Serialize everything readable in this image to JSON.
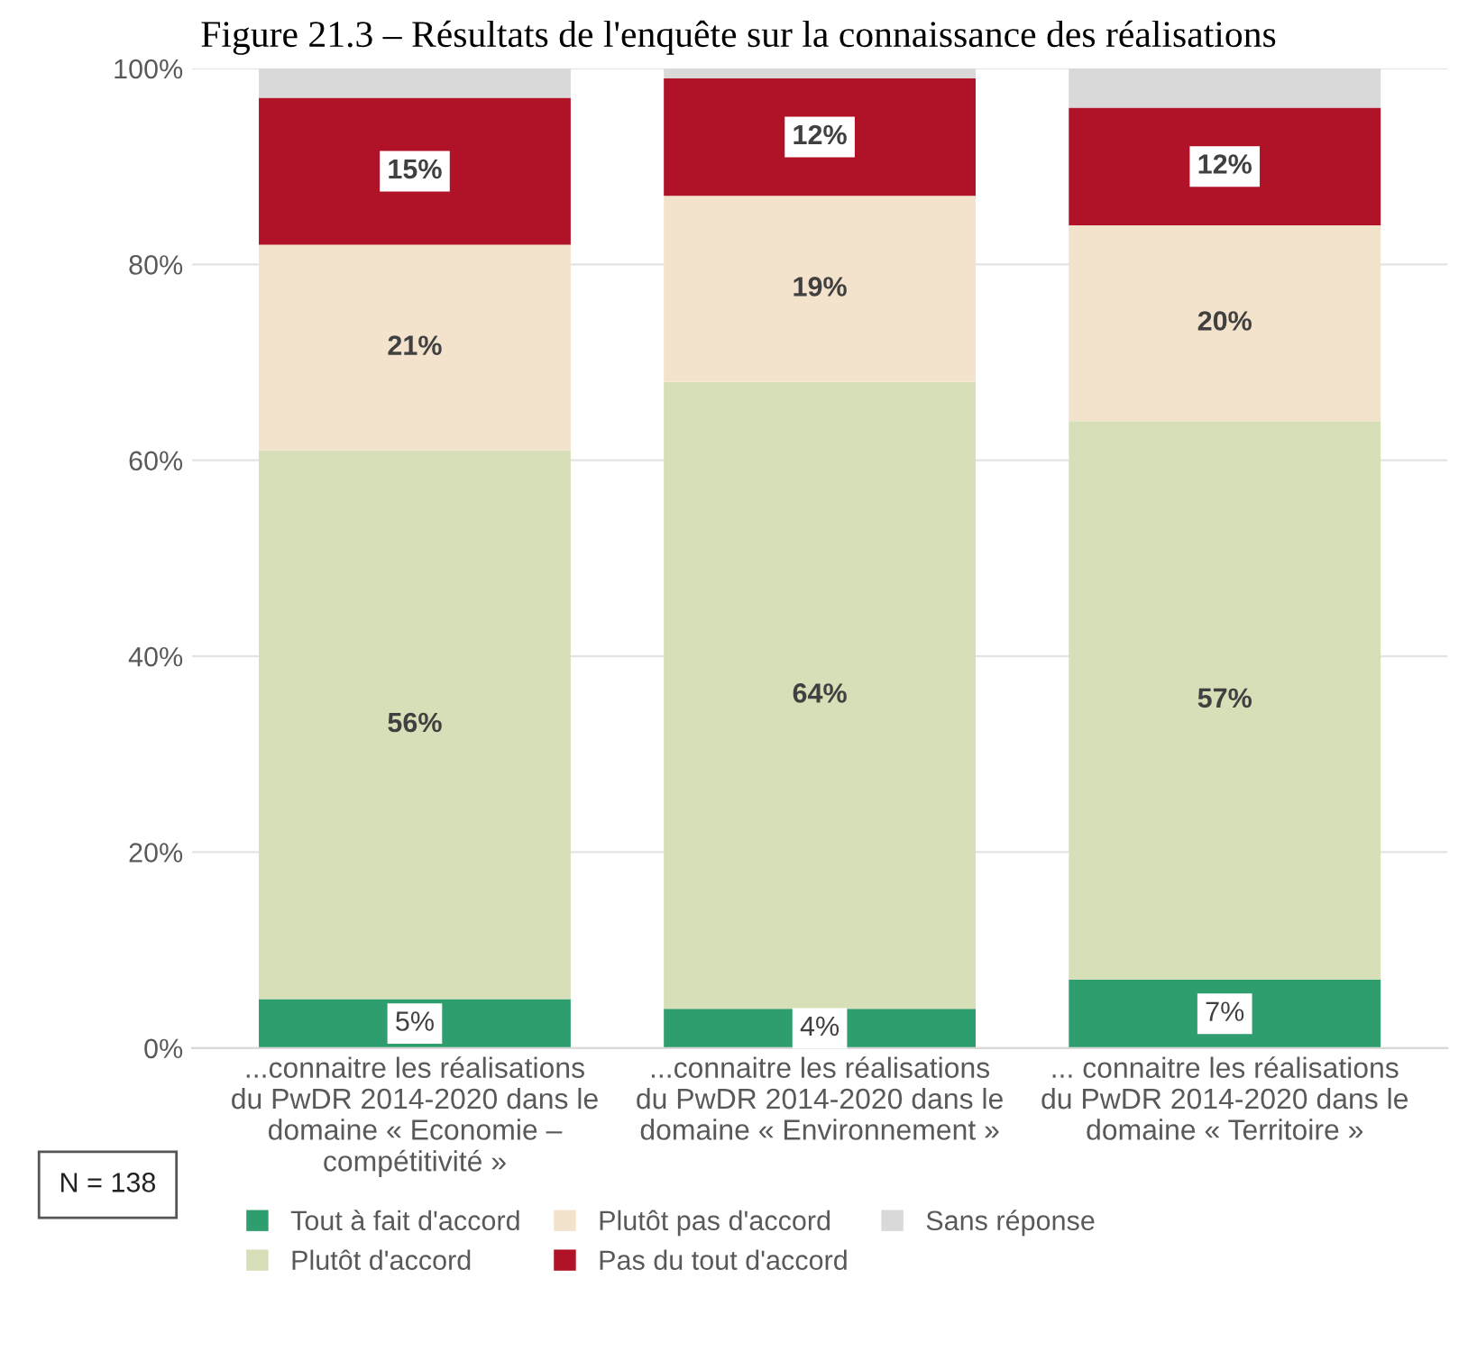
{
  "chart_data": {
    "type": "bar",
    "stacked": true,
    "title": "Figure 21.3 – Résultats de l'enquête sur la connaissance des réalisations",
    "categories": [
      "...connaitre les réalisations\ndu PwDR 2014-2020 dans le\ndomaine « Economie –\ncompétitivité »",
      "...connaitre les réalisations\ndu PwDR 2014-2020 dans le\ndomaine « Environnement »",
      "... connaitre les réalisations\ndu PwDR 2014-2020 dans le\ndomaine « Territoire »"
    ],
    "series": [
      {
        "name": "Tout à fait d'accord",
        "color": "#2e9e6e",
        "values": [
          5,
          4,
          7
        ],
        "value_labels": [
          "5%",
          "4%",
          "7%"
        ]
      },
      {
        "name": "Plutôt d'accord",
        "color": "#d6dfb8",
        "values": [
          56,
          64,
          57
        ],
        "value_labels": [
          "56%",
          "64%",
          "57%"
        ]
      },
      {
        "name": "Plutôt pas d'accord",
        "color": "#f3e3cc",
        "values": [
          21,
          19,
          20
        ],
        "value_labels": [
          "21%",
          "19%",
          "20%"
        ]
      },
      {
        "name": "Pas du tout d'accord",
        "color": "#b01228",
        "values": [
          15,
          12,
          12
        ],
        "value_labels": [
          "15%",
          "12%",
          "12%"
        ]
      },
      {
        "name": "Sans réponse",
        "color": "#d9d9d9",
        "values": [
          3,
          1,
          4
        ],
        "value_labels": [
          null,
          null,
          null
        ]
      }
    ],
    "ylim": [
      0,
      100
    ],
    "yticks": [
      {
        "value": 0,
        "label": "0%"
      },
      {
        "value": 20,
        "label": "20%"
      },
      {
        "value": 40,
        "label": "40%"
      },
      {
        "value": 60,
        "label": "60%"
      },
      {
        "value": 80,
        "label": "80%"
      },
      {
        "value": 100,
        "label": "100%"
      }
    ],
    "grid": "y",
    "legend": "bottom",
    "annotations": [
      "N = 138"
    ]
  }
}
